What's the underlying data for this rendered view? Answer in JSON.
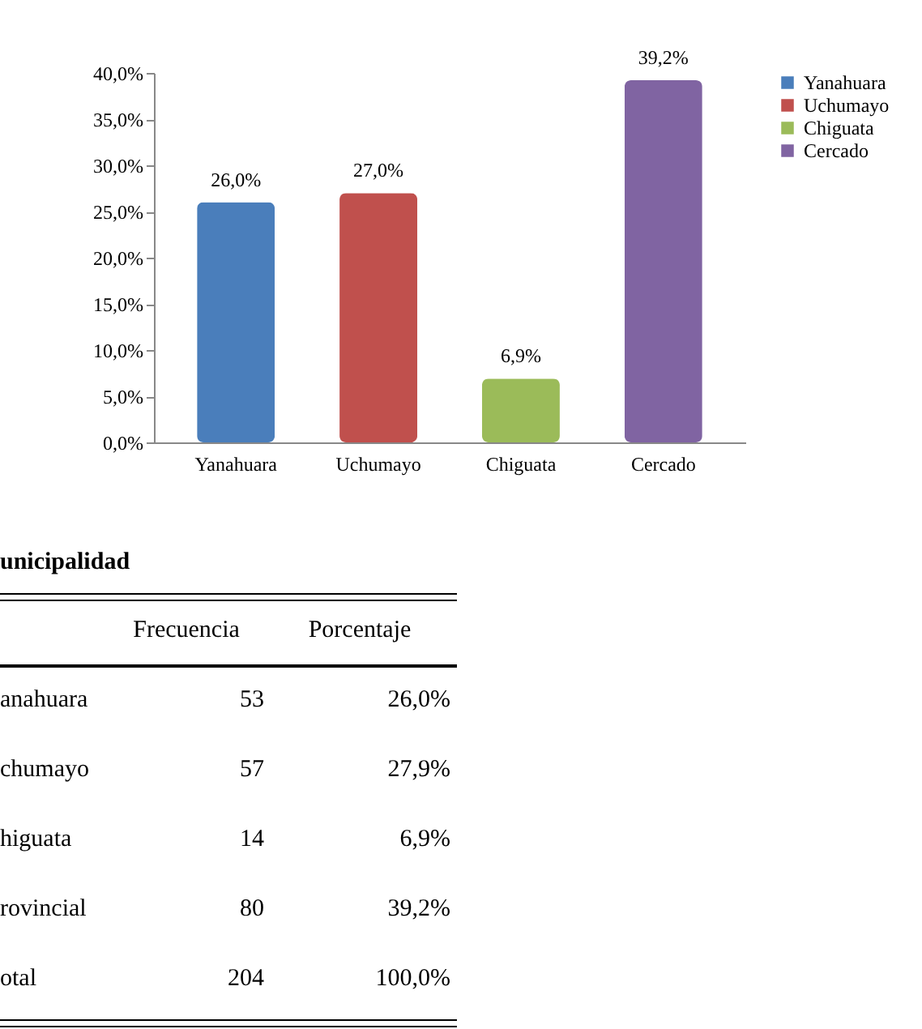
{
  "chart_data": {
    "type": "bar",
    "categories": [
      "Yanahuara",
      "Uchumayo",
      "Chiguata",
      "Cercado"
    ],
    "stacked": true,
    "series": [
      {
        "name": "Yanahuara",
        "color": "#4a7ebb",
        "values": [
          26.0,
          null,
          null,
          null
        ],
        "value_labels": [
          "26,0%",
          null,
          null,
          null
        ]
      },
      {
        "name": "Uchumayo",
        "color": "#c0504d",
        "values": [
          null,
          27.0,
          null,
          null
        ],
        "value_labels": [
          null,
          "27,0%",
          null,
          null
        ]
      },
      {
        "name": "Chiguata",
        "color": "#9bbb59",
        "values": [
          null,
          null,
          6.9,
          null
        ],
        "value_labels": [
          null,
          null,
          "6,9%",
          null
        ]
      },
      {
        "name": "Cercado",
        "color": "#8064a2",
        "values": [
          null,
          null,
          null,
          39.2
        ],
        "value_labels": [
          null,
          null,
          null,
          "39,2%"
        ]
      }
    ],
    "ylim": [
      0,
      40
    ],
    "yticks": [
      {
        "value": 0,
        "label": "0,0%"
      },
      {
        "value": 5,
        "label": "5,0%"
      },
      {
        "value": 10,
        "label": "10,0%"
      },
      {
        "value": 15,
        "label": "15,0%"
      },
      {
        "value": 20,
        "label": "20,0%"
      },
      {
        "value": 25,
        "label": "25,0%"
      },
      {
        "value": 30,
        "label": "30,0%"
      },
      {
        "value": 35,
        "label": "35,0%"
      },
      {
        "value": 40,
        "label": "40,0%"
      }
    ],
    "legend": "right",
    "grid": false,
    "annotations": [
      "unicipalidad",
      "Frecuencia",
      "Porcentaje",
      "anahuara",
      "53",
      "26,0%",
      "chumayo",
      "57",
      "27,9%",
      "higuata",
      "14",
      "6,9%",
      "rovincial",
      "80",
      "39,2%",
      "otal",
      "204",
      "100,0%"
    ]
  }
}
